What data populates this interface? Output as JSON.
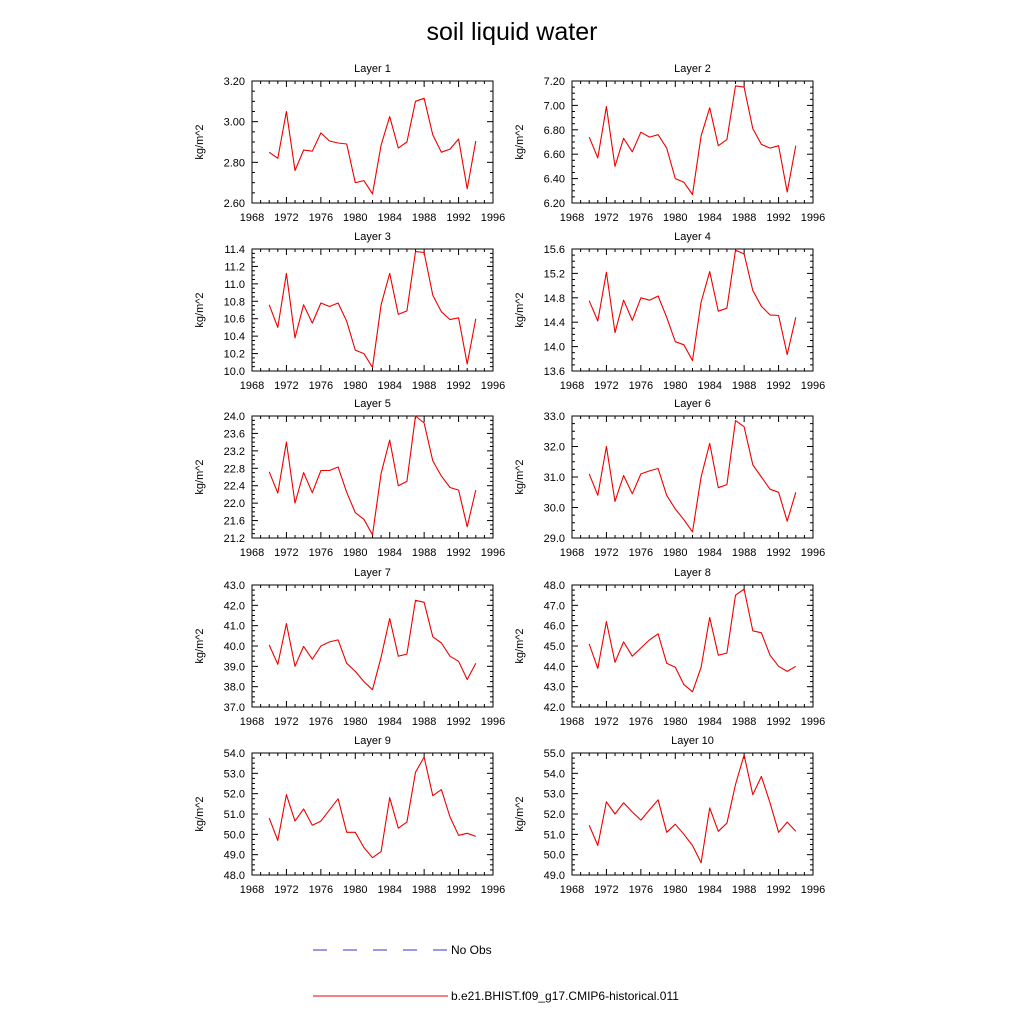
{
  "title": "soil liquid water",
  "ylabel": "kg/m^2",
  "x_ticks": [
    1968,
    1972,
    1976,
    1980,
    1984,
    1988,
    1992,
    1996
  ],
  "legend": {
    "obs": "No Obs",
    "model": "b.e21.BHIST.f09_g17.CMIP6-historical.011",
    "obs_color": "#3333cc",
    "model_color": "#ee0000"
  },
  "chart_data": [
    {
      "type": "line",
      "title": "Layer 1",
      "xlim": [
        1968,
        1996
      ],
      "ylim": [
        2.6,
        3.2
      ],
      "yticks": [
        "2.60",
        "2.80",
        "3.00",
        "3.20"
      ],
      "x": [
        1970,
        1971,
        1972,
        1973,
        1974,
        1975,
        1976,
        1977,
        1978,
        1979,
        1980,
        1981,
        1982,
        1983,
        1984,
        1985,
        1986,
        1987,
        1988,
        1989,
        1990,
        1991,
        1992,
        1993,
        1994
      ],
      "values": [
        2.85,
        2.82,
        3.05,
        2.76,
        2.86,
        2.855,
        2.945,
        2.905,
        2.895,
        2.89,
        2.7,
        2.71,
        2.645,
        2.885,
        3.025,
        2.87,
        2.9,
        3.1,
        3.115,
        2.935,
        2.85,
        2.865,
        2.915,
        2.67,
        2.905
      ]
    },
    {
      "type": "line",
      "title": "Layer 2",
      "xlim": [
        1968,
        1996
      ],
      "ylim": [
        6.2,
        7.2
      ],
      "yticks": [
        "6.20",
        "6.40",
        "6.60",
        "6.80",
        "7.00",
        "7.20"
      ],
      "x": [
        1970,
        1971,
        1972,
        1973,
        1974,
        1975,
        1976,
        1977,
        1978,
        1979,
        1980,
        1981,
        1982,
        1983,
        1984,
        1985,
        1986,
        1987,
        1988,
        1989,
        1990,
        1991,
        1992,
        1993,
        1994
      ],
      "values": [
        6.74,
        6.57,
        6.99,
        6.5,
        6.73,
        6.62,
        6.78,
        6.74,
        6.76,
        6.65,
        6.4,
        6.37,
        6.27,
        6.75,
        6.98,
        6.67,
        6.72,
        7.16,
        7.15,
        6.81,
        6.68,
        6.65,
        6.67,
        6.29,
        6.67
      ]
    },
    {
      "type": "line",
      "title": "Layer 3",
      "xlim": [
        1968,
        1996
      ],
      "ylim": [
        10.0,
        11.4
      ],
      "yticks": [
        "10.0",
        "10.2",
        "10.4",
        "10.6",
        "10.8",
        "11.0",
        "11.2",
        "11.4"
      ],
      "x": [
        1970,
        1971,
        1972,
        1973,
        1974,
        1975,
        1976,
        1977,
        1978,
        1979,
        1980,
        1981,
        1982,
        1983,
        1984,
        1985,
        1986,
        1987,
        1988,
        1989,
        1990,
        1991,
        1992,
        1993,
        1994
      ],
      "values": [
        10.76,
        10.5,
        11.12,
        10.38,
        10.76,
        10.55,
        10.78,
        10.74,
        10.78,
        10.57,
        10.24,
        10.2,
        10.04,
        10.76,
        11.12,
        10.65,
        10.69,
        11.37,
        11.36,
        10.87,
        10.68,
        10.59,
        10.61,
        10.08,
        10.6
      ]
    },
    {
      "type": "line",
      "title": "Layer 4",
      "xlim": [
        1968,
        1996
      ],
      "ylim": [
        13.6,
        15.6
      ],
      "yticks": [
        "13.6",
        "14.0",
        "14.4",
        "14.8",
        "15.2",
        "15.6"
      ],
      "x": [
        1970,
        1971,
        1972,
        1973,
        1974,
        1975,
        1976,
        1977,
        1978,
        1979,
        1980,
        1981,
        1982,
        1983,
        1984,
        1985,
        1986,
        1987,
        1988,
        1989,
        1990,
        1991,
        1992,
        1993,
        1994
      ],
      "values": [
        14.75,
        14.42,
        15.22,
        14.23,
        14.76,
        14.43,
        14.8,
        14.76,
        14.83,
        14.48,
        14.08,
        14.03,
        13.77,
        14.73,
        15.23,
        14.58,
        14.63,
        15.58,
        15.52,
        14.92,
        14.66,
        14.52,
        14.51,
        13.87,
        14.48
      ]
    },
    {
      "type": "line",
      "title": "Layer 5",
      "xlim": [
        1968,
        1996
      ],
      "ylim": [
        21.2,
        24.0
      ],
      "yticks": [
        "21.2",
        "21.6",
        "22.0",
        "22.4",
        "22.8",
        "23.2",
        "23.6",
        "24.0"
      ],
      "x": [
        1970,
        1971,
        1972,
        1973,
        1974,
        1975,
        1976,
        1977,
        1978,
        1979,
        1980,
        1981,
        1982,
        1983,
        1984,
        1985,
        1986,
        1987,
        1988,
        1989,
        1990,
        1991,
        1992,
        1993,
        1994
      ],
      "values": [
        22.72,
        22.23,
        23.4,
        22.0,
        22.7,
        22.24,
        22.75,
        22.75,
        22.83,
        22.25,
        21.78,
        21.63,
        21.27,
        22.68,
        23.45,
        22.4,
        22.5,
        24.0,
        23.84,
        22.97,
        22.62,
        22.36,
        22.3,
        21.46,
        22.3
      ]
    },
    {
      "type": "line",
      "title": "Layer 6",
      "xlim": [
        1968,
        1996
      ],
      "ylim": [
        29.0,
        33.0
      ],
      "yticks": [
        "29.0",
        "30.0",
        "31.0",
        "32.0",
        "33.0"
      ],
      "x": [
        1970,
        1971,
        1972,
        1973,
        1974,
        1975,
        1976,
        1977,
        1978,
        1979,
        1980,
        1981,
        1982,
        1983,
        1984,
        1985,
        1986,
        1987,
        1988,
        1989,
        1990,
        1991,
        1992,
        1993,
        1994
      ],
      "values": [
        31.1,
        30.4,
        32.0,
        30.2,
        31.05,
        30.45,
        31.1,
        31.2,
        31.28,
        30.4,
        29.95,
        29.6,
        29.2,
        31.0,
        32.1,
        30.65,
        30.75,
        32.85,
        32.65,
        31.4,
        31.0,
        30.6,
        30.5,
        29.55,
        30.5
      ]
    },
    {
      "type": "line",
      "title": "Layer 7",
      "xlim": [
        1968,
        1996
      ],
      "ylim": [
        37.0,
        43.0
      ],
      "yticks": [
        "37.0",
        "38.0",
        "39.0",
        "40.0",
        "41.0",
        "42.0",
        "43.0"
      ],
      "x": [
        1970,
        1971,
        1972,
        1973,
        1974,
        1975,
        1976,
        1977,
        1978,
        1979,
        1980,
        1981,
        1982,
        1983,
        1984,
        1985,
        1986,
        1987,
        1988,
        1989,
        1990,
        1991,
        1992,
        1993,
        1994
      ],
      "values": [
        40.05,
        39.1,
        41.1,
        39.0,
        39.98,
        39.35,
        40.0,
        40.2,
        40.3,
        39.15,
        38.75,
        38.25,
        37.85,
        39.45,
        41.35,
        39.5,
        39.6,
        42.25,
        42.15,
        40.45,
        40.15,
        39.5,
        39.25,
        38.35,
        39.15
      ]
    },
    {
      "type": "line",
      "title": "Layer 8",
      "xlim": [
        1968,
        1996
      ],
      "ylim": [
        42.0,
        48.0
      ],
      "yticks": [
        "42.0",
        "43.0",
        "44.0",
        "45.0",
        "46.0",
        "47.0",
        "48.0"
      ],
      "x": [
        1970,
        1971,
        1972,
        1973,
        1974,
        1975,
        1976,
        1977,
        1978,
        1979,
        1980,
        1981,
        1982,
        1983,
        1984,
        1985,
        1986,
        1987,
        1988,
        1989,
        1990,
        1991,
        1992,
        1993,
        1994
      ],
      "values": [
        45.1,
        43.9,
        46.2,
        44.2,
        45.2,
        44.5,
        44.9,
        45.3,
        45.6,
        44.15,
        43.95,
        43.1,
        42.75,
        43.95,
        46.4,
        44.55,
        44.65,
        47.5,
        47.8,
        45.75,
        45.65,
        44.55,
        44.0,
        43.75,
        44.0
      ]
    },
    {
      "type": "line",
      "title": "Layer 9",
      "xlim": [
        1968,
        1996
      ],
      "ylim": [
        48.0,
        54.0
      ],
      "yticks": [
        "48.0",
        "49.0",
        "50.0",
        "51.0",
        "52.0",
        "53.0",
        "54.0"
      ],
      "x": [
        1970,
        1971,
        1972,
        1973,
        1974,
        1975,
        1976,
        1977,
        1978,
        1979,
        1980,
        1981,
        1982,
        1983,
        1984,
        1985,
        1986,
        1987,
        1988,
        1989,
        1990,
        1991,
        1992,
        1993,
        1994
      ],
      "values": [
        50.8,
        49.7,
        51.95,
        50.65,
        51.25,
        50.45,
        50.65,
        51.2,
        51.75,
        50.1,
        50.1,
        49.35,
        48.85,
        49.15,
        51.8,
        50.3,
        50.6,
        53.05,
        53.8,
        51.9,
        52.2,
        50.85,
        49.95,
        50.05,
        49.9
      ]
    },
    {
      "type": "line",
      "title": "Layer 10",
      "xlim": [
        1968,
        1996
      ],
      "ylim": [
        49.0,
        55.0
      ],
      "yticks": [
        "49.0",
        "50.0",
        "51.0",
        "52.0",
        "53.0",
        "54.0",
        "55.0"
      ],
      "x": [
        1970,
        1971,
        1972,
        1973,
        1974,
        1975,
        1976,
        1977,
        1978,
        1979,
        1980,
        1981,
        1982,
        1983,
        1984,
        1985,
        1986,
        1987,
        1988,
        1989,
        1990,
        1991,
        1992,
        1993,
        1994
      ],
      "values": [
        51.45,
        50.45,
        52.6,
        52.0,
        52.55,
        52.1,
        51.7,
        52.2,
        52.7,
        51.1,
        51.5,
        51.0,
        50.45,
        49.6,
        52.3,
        51.15,
        51.55,
        53.45,
        54.9,
        52.95,
        53.85,
        52.55,
        51.1,
        51.6,
        51.15
      ]
    }
  ]
}
